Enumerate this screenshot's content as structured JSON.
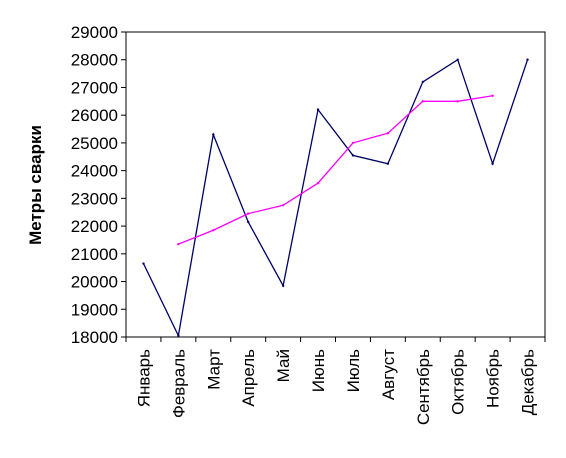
{
  "chart_data": {
    "type": "line",
    "title": "",
    "xlabel": "",
    "ylabel": "Метры сварки",
    "categories": [
      "Январь",
      "Февраль",
      "Март",
      "Апрель",
      "Май",
      "Июнь",
      "Июль",
      "Август",
      "Сентябрь",
      "Октябрь",
      "Ноябрь",
      "Декабрь"
    ],
    "ylim": [
      18000,
      29000
    ],
    "yticks": [
      18000,
      19000,
      20000,
      21000,
      22000,
      23000,
      24000,
      25000,
      26000,
      27000,
      28000,
      29000
    ],
    "grid": false,
    "legend": "none",
    "series": [
      {
        "color": "#000066",
        "values": [
          20650,
          18050,
          25300,
          22150,
          19850,
          26200,
          24550,
          24250,
          27200,
          28000,
          24250,
          28000
        ]
      },
      {
        "color": "#ff00ff",
        "values": [
          null,
          21350,
          21850,
          22450,
          22750,
          23550,
          25000,
          25350,
          26500,
          26500,
          26700,
          null
        ]
      }
    ]
  }
}
